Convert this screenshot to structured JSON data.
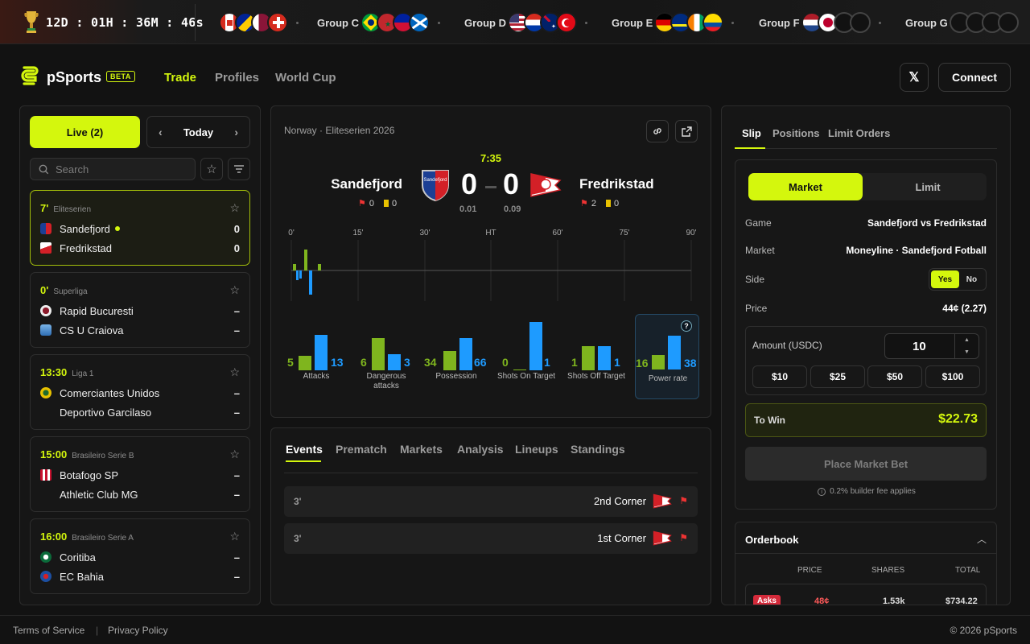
{
  "topbar": {
    "countdown": "12D : 01H : 36M : 46s",
    "groups": [
      {
        "label": "",
        "flags": [
          "canada",
          "bosnia",
          "qatar",
          "switzerland"
        ]
      },
      {
        "label": "Group C",
        "flags": [
          "brazil",
          "morocco",
          "haiti",
          "scotland"
        ]
      },
      {
        "label": "Group D",
        "flags": [
          "usa",
          "paraguay",
          "australia",
          "turkey"
        ]
      },
      {
        "label": "Group E",
        "flags": [
          "germany",
          "curacao",
          "ivory-coast",
          "ecuador"
        ]
      },
      {
        "label": "Group F",
        "flags": [
          "netherlands",
          "japan",
          "tbd",
          "tbd"
        ]
      },
      {
        "label": "Group G",
        "flags": [
          "tbd",
          "tbd",
          "tbd",
          "tbd"
        ]
      }
    ]
  },
  "header": {
    "brand": "pSports",
    "beta": "BETA",
    "nav": [
      "Trade",
      "Profiles",
      "World Cup"
    ],
    "connect": "Connect"
  },
  "left": {
    "live_label": "Live (2)",
    "date_label": "Today",
    "search_placeholder": "Search",
    "matches": [
      {
        "time": "7'",
        "league": "Eliteserien",
        "home": "Sandefjord",
        "away": "Fredrikstad",
        "home_score": "0",
        "away_score": "0",
        "live": true
      },
      {
        "time": "0'",
        "league": "Superliga",
        "home": "Rapid Bucuresti",
        "away": "CS U Craiova",
        "home_score": "–",
        "away_score": "–"
      },
      {
        "time": "13:30",
        "league": "Liga 1",
        "home": "Comerciantes Unidos",
        "away": "Deportivo Garcilaso",
        "home_score": "–",
        "away_score": "–"
      },
      {
        "time": "15:00",
        "league": "Brasileiro Serie B",
        "home": "Botafogo SP",
        "away": "Athletic Club MG",
        "home_score": "–",
        "away_score": "–"
      },
      {
        "time": "16:00",
        "league": "Brasileiro Serie A",
        "home": "Coritiba",
        "away": "EC Bahia",
        "home_score": "–",
        "away_score": "–"
      }
    ]
  },
  "match": {
    "breadcrumb": "Norway · Eliteserien 2026",
    "clock": "7:35",
    "home": "Sandefjord",
    "away": "Fredrikstad",
    "home_score": "0",
    "away_score": "0",
    "home_odds": "0.01",
    "away_odds": "0.09",
    "home_corners": "0",
    "home_yellow": "0",
    "away_corners": "2",
    "away_yellow": "0",
    "timeline_labels": [
      "0'",
      "15'",
      "30'",
      "HT",
      "60'",
      "75'",
      "90'"
    ],
    "stats": [
      {
        "label": "Attacks",
        "home": 5,
        "away": 13
      },
      {
        "label": "Dangerous attacks",
        "home": 6,
        "away": 3
      },
      {
        "label": "Possession",
        "home": 34,
        "away": 66
      },
      {
        "label": "Shots On Target",
        "home": 0,
        "away": 1
      },
      {
        "label": "Shots Off Target",
        "home": 1,
        "away": 1
      },
      {
        "label": "Power rate",
        "home": 16,
        "away": 38
      }
    ]
  },
  "events": {
    "tabs": [
      "Events",
      "Prematch",
      "Markets",
      "Analysis",
      "Lineups",
      "Standings"
    ],
    "items": [
      {
        "minute": "3'",
        "name": "2nd Corner"
      },
      {
        "minute": "3'",
        "name": "1st Corner"
      }
    ]
  },
  "slip": {
    "tabs": [
      "Slip",
      "Positions",
      "Limit Orders"
    ],
    "market_label": "Market",
    "limit_label": "Limit",
    "rows": [
      {
        "k": "Game",
        "v": "Sandefjord vs Fredrikstad"
      },
      {
        "k": "Market",
        "v": "Moneyline · Sandefjord Fotball"
      },
      {
        "k": "Side",
        "v": ""
      },
      {
        "k": "Price",
        "v": "44¢ (2.27)"
      }
    ],
    "yes": "Yes",
    "no": "No",
    "amount_label": "Amount (USDC)",
    "amount": "10",
    "chips": [
      "$10",
      "$25",
      "$50",
      "$100"
    ],
    "to_win_label": "To Win",
    "to_win": "$22.73",
    "place": "Place Market Bet",
    "fee": "0.2% builder fee applies"
  },
  "orderbook": {
    "title": "Orderbook",
    "cols": [
      "PRICE",
      "SHARES",
      "TOTAL"
    ],
    "asks_label": "Asks",
    "ask_price": "48¢",
    "ask_shares": "1.53k",
    "ask_total": "$734.22"
  },
  "footer": {
    "terms": "Terms of Service",
    "privacy": "Privacy Policy",
    "copyright": "© 2026 pSports"
  },
  "colors": {
    "accent": "#d4f70d",
    "home": "#7fb51e",
    "away": "#1e9bff"
  }
}
